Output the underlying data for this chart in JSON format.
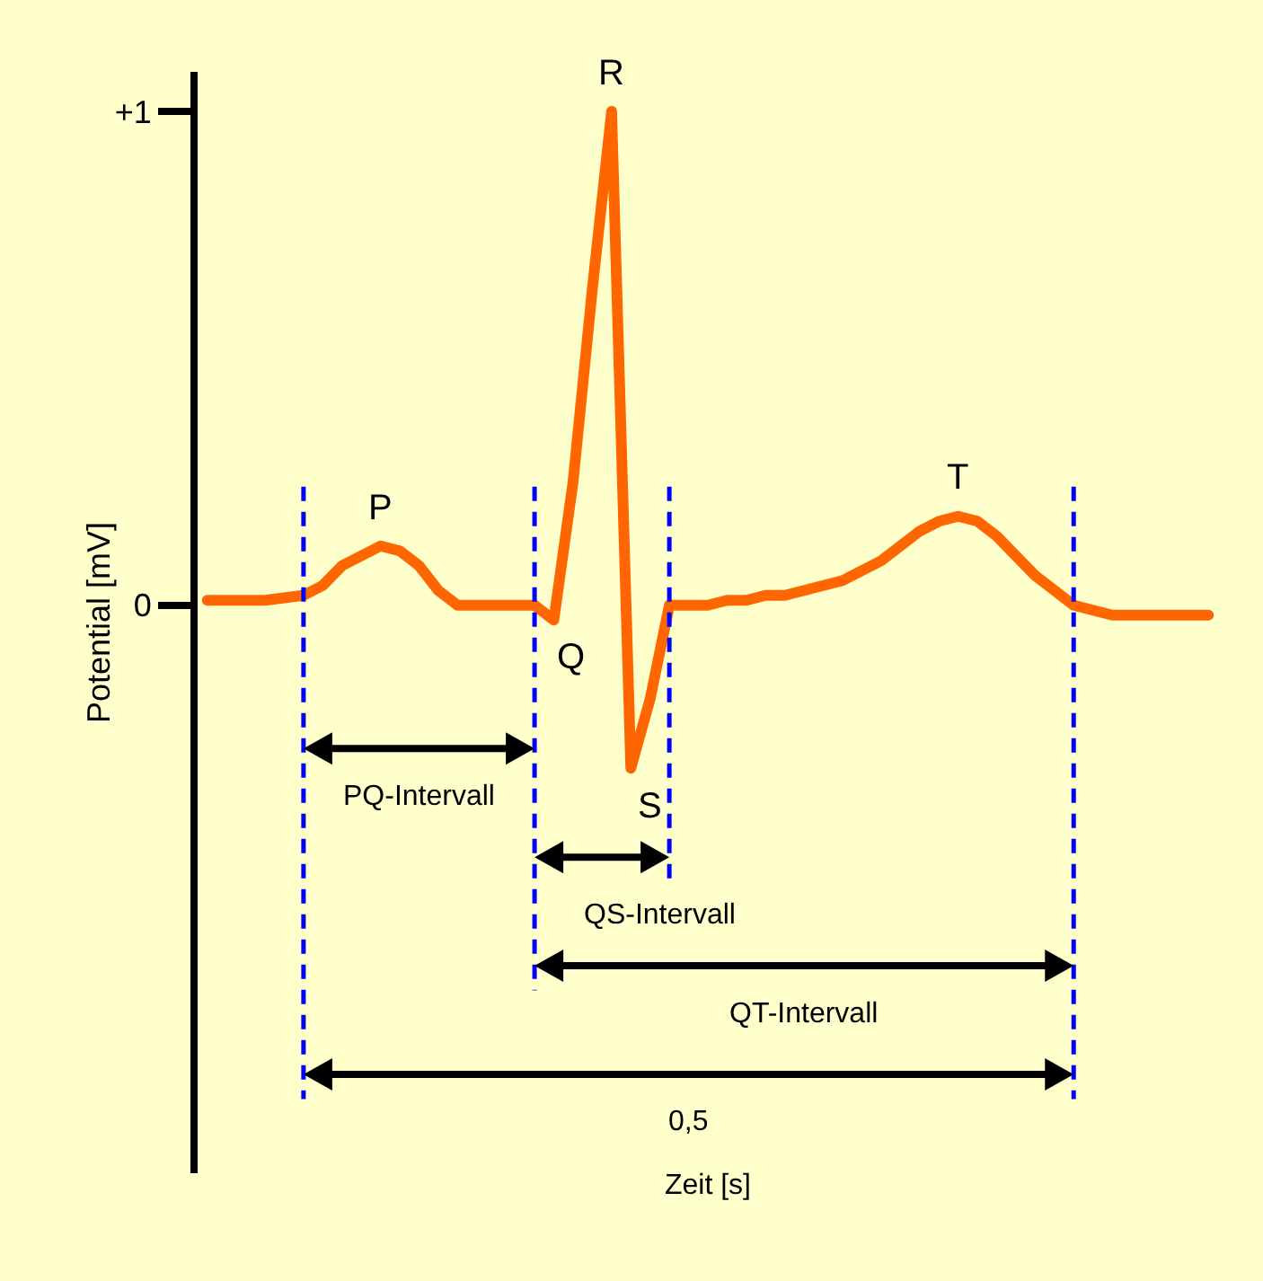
{
  "chart_data": {
    "type": "line",
    "ylabel": "Potential [mV]",
    "xlabel": "Zeit [s]",
    "categories": [
      null,
      null,
      null,
      null,
      null,
      null,
      null,
      null,
      null,
      null,
      null,
      null,
      null,
      null,
      null,
      null,
      null,
      null,
      null,
      null,
      null,
      null,
      null,
      null,
      null,
      null,
      null,
      null,
      null,
      null,
      null,
      null,
      null,
      null,
      null,
      null,
      null,
      null,
      null,
      null,
      null,
      null,
      null,
      null,
      null,
      null,
      null,
      null,
      null,
      null,
      null,
      null,
      null
    ],
    "series": [
      {
        "color": "#ff6600",
        "values": [
          0.01,
          0.01,
          0.01,
          0.01,
          0.015,
          0.02,
          0.04,
          0.08,
          0.1,
          0.12,
          0.11,
          0.08,
          0.03,
          0,
          0,
          0,
          0,
          0,
          -0.03,
          0.25,
          0.64,
          1.0,
          -0.33,
          -0.19,
          0,
          0,
          0,
          0.01,
          0.01,
          0.02,
          0.02,
          0.03,
          0.04,
          0.05,
          0.07,
          0.09,
          0.12,
          0.15,
          0.17,
          0.18,
          0.17,
          0.14,
          0.1,
          0.06,
          0.03,
          0,
          -0.01,
          -0.02,
          -0.02,
          -0.02,
          -0.02,
          -0.02,
          -0.02
        ],
        "value_labels": [
          null,
          null,
          null,
          null,
          null,
          null,
          null,
          null,
          null,
          "P",
          null,
          null,
          null,
          null,
          null,
          null,
          null,
          null,
          "Q",
          null,
          null,
          "R",
          "S",
          null,
          null,
          null,
          null,
          null,
          null,
          null,
          null,
          null,
          null,
          null,
          null,
          null,
          null,
          null,
          null,
          "T",
          null,
          null,
          null,
          null,
          null,
          null,
          null,
          null,
          null,
          null,
          null,
          null,
          null
        ]
      }
    ],
    "ylim": [
      -1.15,
      1.08
    ],
    "yticks": [
      {
        "value": 0,
        "label": "0"
      },
      {
        "value": 1,
        "label": "+1"
      }
    ],
    "tick_labels": "y",
    "grid": false,
    "marker": "none",
    "line_style": "solid",
    "annotations": [
      "PQ-Intervall",
      "QS-Intervall",
      "QT-Intervall",
      "0,5"
    ]
  }
}
